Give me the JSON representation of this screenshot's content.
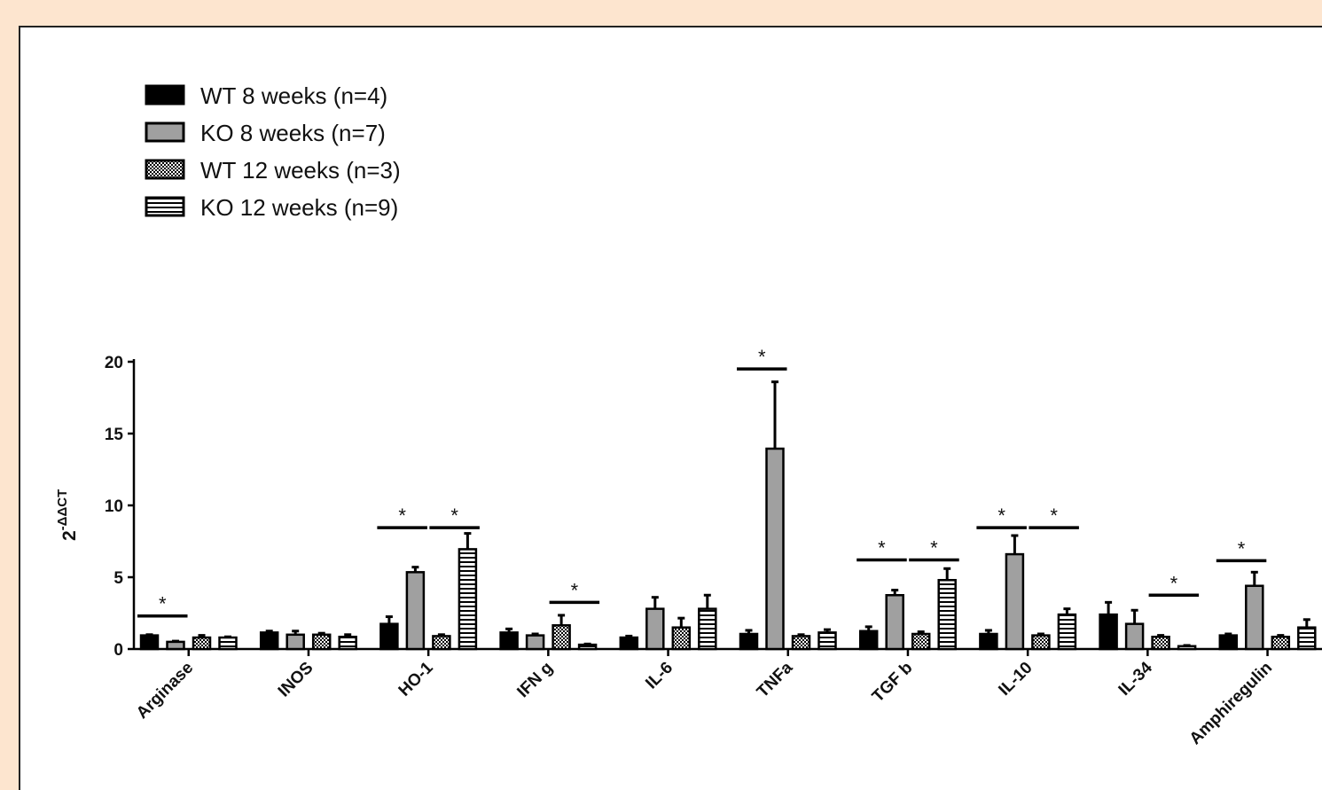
{
  "chart_data": {
    "type": "bar",
    "ylabel_base": "2",
    "ylabel_exp": "-ΔΔCT",
    "ylim": [
      0,
      20
    ],
    "yticks": [
      0,
      5,
      10,
      15,
      20
    ],
    "categories": [
      "Arginase",
      "INOS",
      "HO-1",
      "IFN g",
      "IL-6",
      "TNFa",
      "TGF b",
      "IL-10",
      "IL-34",
      "Amphiregulin"
    ],
    "series": [
      {
        "name": "WT 8 weeks (n=4)",
        "pattern": "solid-black",
        "values": [
          0.95,
          1.15,
          1.75,
          1.15,
          0.8,
          1.05,
          1.25,
          1.05,
          2.4,
          0.95
        ],
        "errors": [
          0.05,
          0.1,
          0.5,
          0.25,
          0.1,
          0.25,
          0.3,
          0.25,
          0.85,
          0.1
        ]
      },
      {
        "name": "KO 8 weeks (n=7)",
        "pattern": "solid-gray",
        "values": [
          0.5,
          1.0,
          5.35,
          0.95,
          2.8,
          13.95,
          3.75,
          6.6,
          1.75,
          4.4
        ],
        "errors": [
          0.05,
          0.25,
          0.35,
          0.1,
          0.8,
          4.65,
          0.35,
          1.3,
          0.95,
          0.95
        ]
      },
      {
        "name": "WT 12 weeks (n=3)",
        "pattern": "crosshatch",
        "values": [
          0.8,
          1.0,
          0.9,
          1.65,
          1.5,
          0.9,
          1.05,
          0.95,
          0.85,
          0.85
        ],
        "errors": [
          0.15,
          0.1,
          0.1,
          0.7,
          0.65,
          0.1,
          0.15,
          0.1,
          0.1,
          0.1
        ]
      },
      {
        "name": "KO 12 weeks (n=9)",
        "pattern": "horizontal-lines",
        "values": [
          0.8,
          0.85,
          6.95,
          0.3,
          2.8,
          1.15,
          4.8,
          2.4,
          0.2,
          1.5
        ],
        "errors": [
          0.05,
          0.15,
          1.1,
          0.05,
          0.95,
          0.2,
          0.8,
          0.4,
          0.05,
          0.55
        ]
      }
    ],
    "significance": [
      {
        "category": 0,
        "from_series": 0,
        "to_series": 1,
        "y": 2.3,
        "label": "*"
      },
      {
        "category": 2,
        "from_series": 0,
        "to_series": 1,
        "y": 8.45,
        "label": "*"
      },
      {
        "category": 2,
        "from_series": 2,
        "to_series": 3,
        "y": 8.45,
        "label": "*"
      },
      {
        "category": 3,
        "from_series": 2,
        "to_series": 3,
        "y": 3.25,
        "label": "*"
      },
      {
        "category": 5,
        "from_series": 0,
        "to_series": 1,
        "y": 19.5,
        "label": "*"
      },
      {
        "category": 6,
        "from_series": 0,
        "to_series": 1,
        "y": 6.2,
        "label": "*"
      },
      {
        "category": 6,
        "from_series": 2,
        "to_series": 3,
        "y": 6.2,
        "label": "*"
      },
      {
        "category": 7,
        "from_series": 0,
        "to_series": 1,
        "y": 8.45,
        "label": "*"
      },
      {
        "category": 7,
        "from_series": 2,
        "to_series": 3,
        "y": 8.45,
        "label": "*"
      },
      {
        "category": 8,
        "from_series": 2,
        "to_series": 3,
        "y": 3.75,
        "label": "*"
      },
      {
        "category": 9,
        "from_series": 0,
        "to_series": 1,
        "y": 6.15,
        "label": "*"
      }
    ],
    "legend_position": "top-left",
    "grid": false,
    "colors": {
      "page_background": "#fde5cf",
      "plot_background": "#ffffff",
      "solid_black": "#000000",
      "solid_gray": "#a0a0a0",
      "outline": "#000000"
    }
  }
}
